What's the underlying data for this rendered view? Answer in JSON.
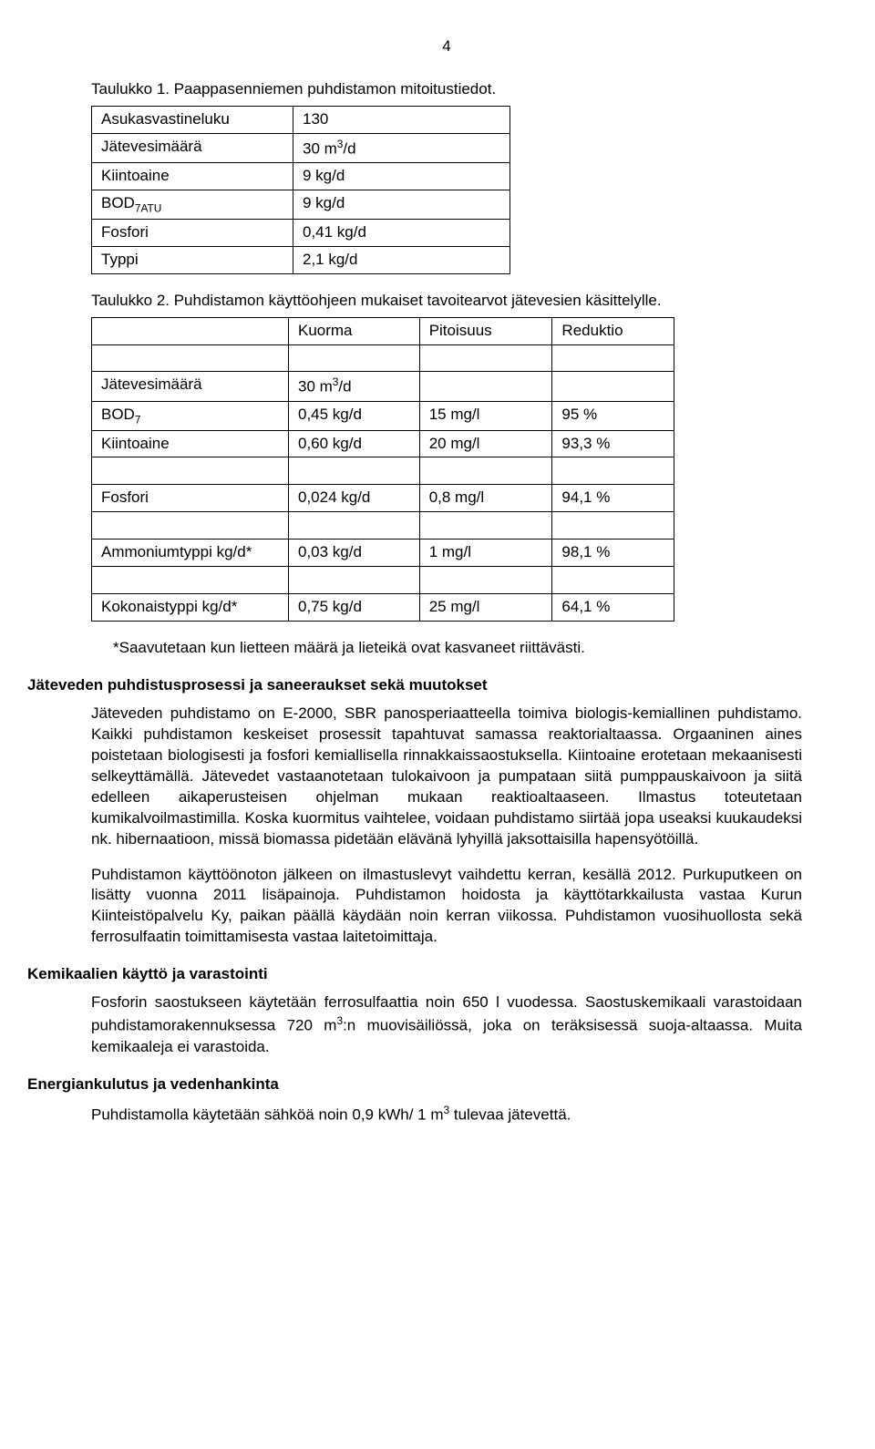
{
  "page_number": "4",
  "table1": {
    "caption": "Taulukko 1. Paappasenniemen puhdistamon mitoitustiedot.",
    "rows": [
      {
        "label": "Asukasvastineluku",
        "value": "130"
      },
      {
        "label_html": "Jätevesimäärä",
        "value_html": "30 m<span class='sup'>3</span>/d"
      },
      {
        "label": "Kiintoaine",
        "value": "9 kg/d"
      },
      {
        "label_html": "BOD<span class='sub'>7ATU</span>",
        "value": "9 kg/d"
      },
      {
        "label": "Fosfori",
        "value": "0,41 kg/d"
      },
      {
        "label": "Typpi",
        "value": "2,1 kg/d"
      }
    ]
  },
  "table2": {
    "caption": "Taulukko 2. Puhdistamon käyttöohjeen mukaiset tavoitearvot jätevesien käsittelylle.",
    "headers": [
      "",
      "Kuorma",
      "Pitoisuus",
      "Reduktio"
    ],
    "groups": [
      {
        "rows": [
          {
            "c0_html": "Jätevesimäärä",
            "c1_html": "30 m<span class='sup'>3</span>/d",
            "c2": "",
            "c3": ""
          },
          {
            "c0_html": "BOD<span class='sub'>7</span>",
            "c1": "0,45 kg/d",
            "c2": "15 mg/l",
            "c3": "95 %"
          },
          {
            "c0": "Kiintoaine",
            "c1": "0,60 kg/d",
            "c2": "20 mg/l",
            "c3": "93,3 %"
          }
        ]
      },
      {
        "rows": [
          {
            "c0": "Fosfori",
            "c1": "0,024 kg/d",
            "c2": "0,8 mg/l",
            "c3": "94,1 %"
          }
        ]
      },
      {
        "rows": [
          {
            "c0": "Ammoniumtyppi kg/d*",
            "c1": "0,03 kg/d",
            "c2": "1 mg/l",
            "c3": "98,1 %"
          }
        ]
      },
      {
        "rows": [
          {
            "c0": "Kokonaistyppi kg/d*",
            "c1": "0,75 kg/d",
            "c2": "25 mg/l",
            "c3": "64,1 %"
          }
        ]
      }
    ],
    "footnote": "*Saavutetaan kun lietteen määrä ja lieteikä ovat kasvaneet riittävästi."
  },
  "sections": [
    {
      "heading": "Jäteveden puhdistusprosessi ja saneeraukset sekä muutokset",
      "paragraphs": [
        "Jäteveden puhdistamo on E-2000, SBR panosperiaatteella toimiva biologis-kemiallinen puhdistamo. Kaikki puhdistamon keskeiset prosessit tapahtuvat samassa reaktorialtaassa. Orgaaninen aines poistetaan biologisesti ja fosfori kemiallisella rinnakkaissaostuksella. Kiintoaine erotetaan mekaanisesti selkeyttämällä. Jätevedet vastaanotetaan tulokaivoon ja pumpataan siitä pumppauskaivoon ja siitä edelleen aikaperusteisen ohjelman mukaan reaktioaltaaseen. Ilmastus toteutetaan kumikalvoilmastimilla. Koska kuormitus vaihtelee, voidaan puhdistamo siirtää jopa useaksi kuukaudeksi nk. hibernaatioon, missä biomassa pidetään elävänä lyhyillä jaksottaisilla hapensyötöillä.",
        "Puhdistamon käyttöönoton jälkeen on ilmastuslevyt vaihdettu kerran, kesällä 2012. Purkuputkeen on lisätty vuonna 2011 lisäpainoja. Puhdistamon hoidosta ja käyttötarkkailusta vastaa Kurun Kiinteistöpalvelu Ky, paikan päällä käydään noin kerran viikossa. Puhdistamon vuosihuollosta sekä ferrosulfaatin toimittamisesta vastaa laitetoimittaja."
      ]
    },
    {
      "heading": "Kemikaalien käyttö ja varastointi",
      "paragraphs_html": [
        "Fosforin saostukseen käytetään ferrosulfaattia noin 650 l vuodessa. Saostuskemikaali varastoidaan puhdistamorakennuksessa 720 m<span class='sup'>3</span>:n muovisäiliössä, joka on teräksisessä suoja-altaassa. Muita kemikaaleja ei varastoida."
      ]
    },
    {
      "heading": "Energiankulutus ja vedenhankinta",
      "paragraphs_html": [
        "Puhdistamolla käytetään sähköä noin 0,9 kWh/ 1 m<span class='sup'>3</span> tulevaa jätevettä."
      ]
    }
  ]
}
